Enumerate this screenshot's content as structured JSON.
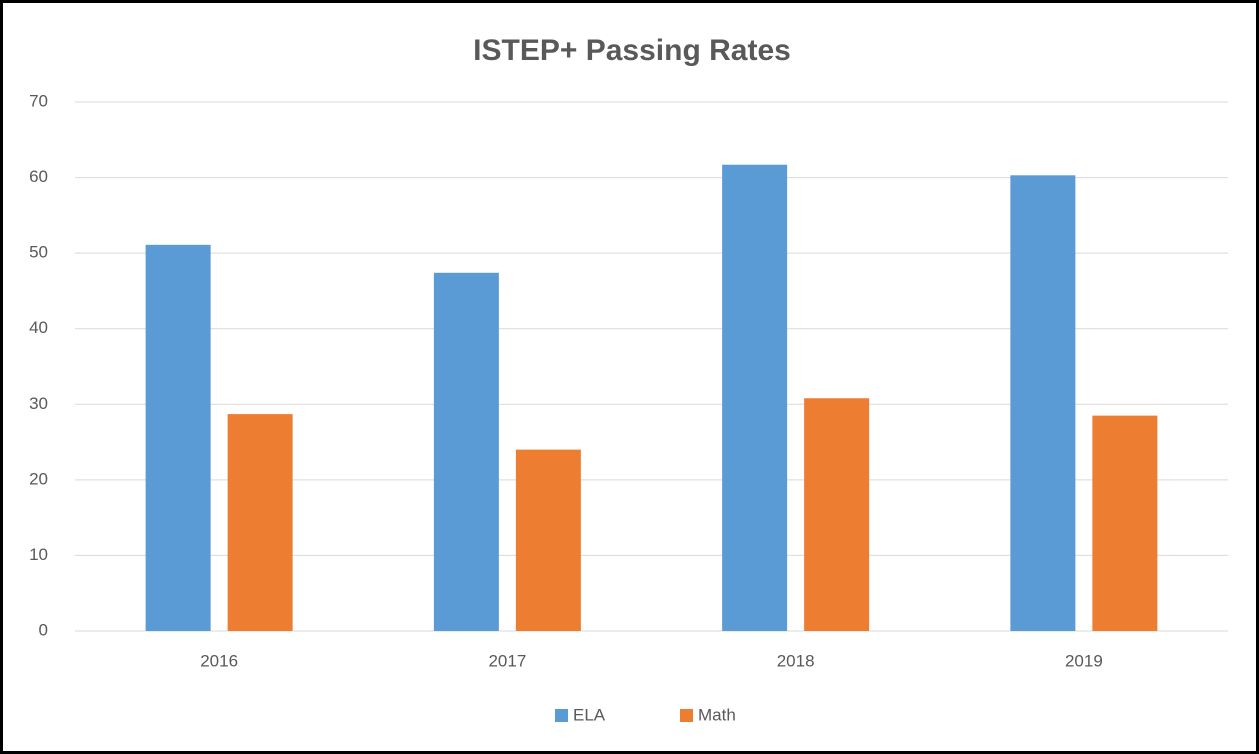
{
  "chart_data": {
    "type": "bar",
    "title": "ISTEP+ Passing Rates",
    "categories": [
      "2016",
      "2017",
      "2018",
      "2019"
    ],
    "series": [
      {
        "name": "ELA",
        "color": "#5b9bd5",
        "values": [
          51.1,
          47.4,
          61.7,
          60.3
        ]
      },
      {
        "name": "Math",
        "color": "#ed7d31",
        "values": [
          28.7,
          24.0,
          30.8,
          28.5
        ]
      }
    ],
    "ylim": [
      0,
      70
    ],
    "yticks": [
      0,
      10,
      20,
      30,
      40,
      50,
      60,
      70
    ],
    "grid": true,
    "legend": "bottom"
  }
}
